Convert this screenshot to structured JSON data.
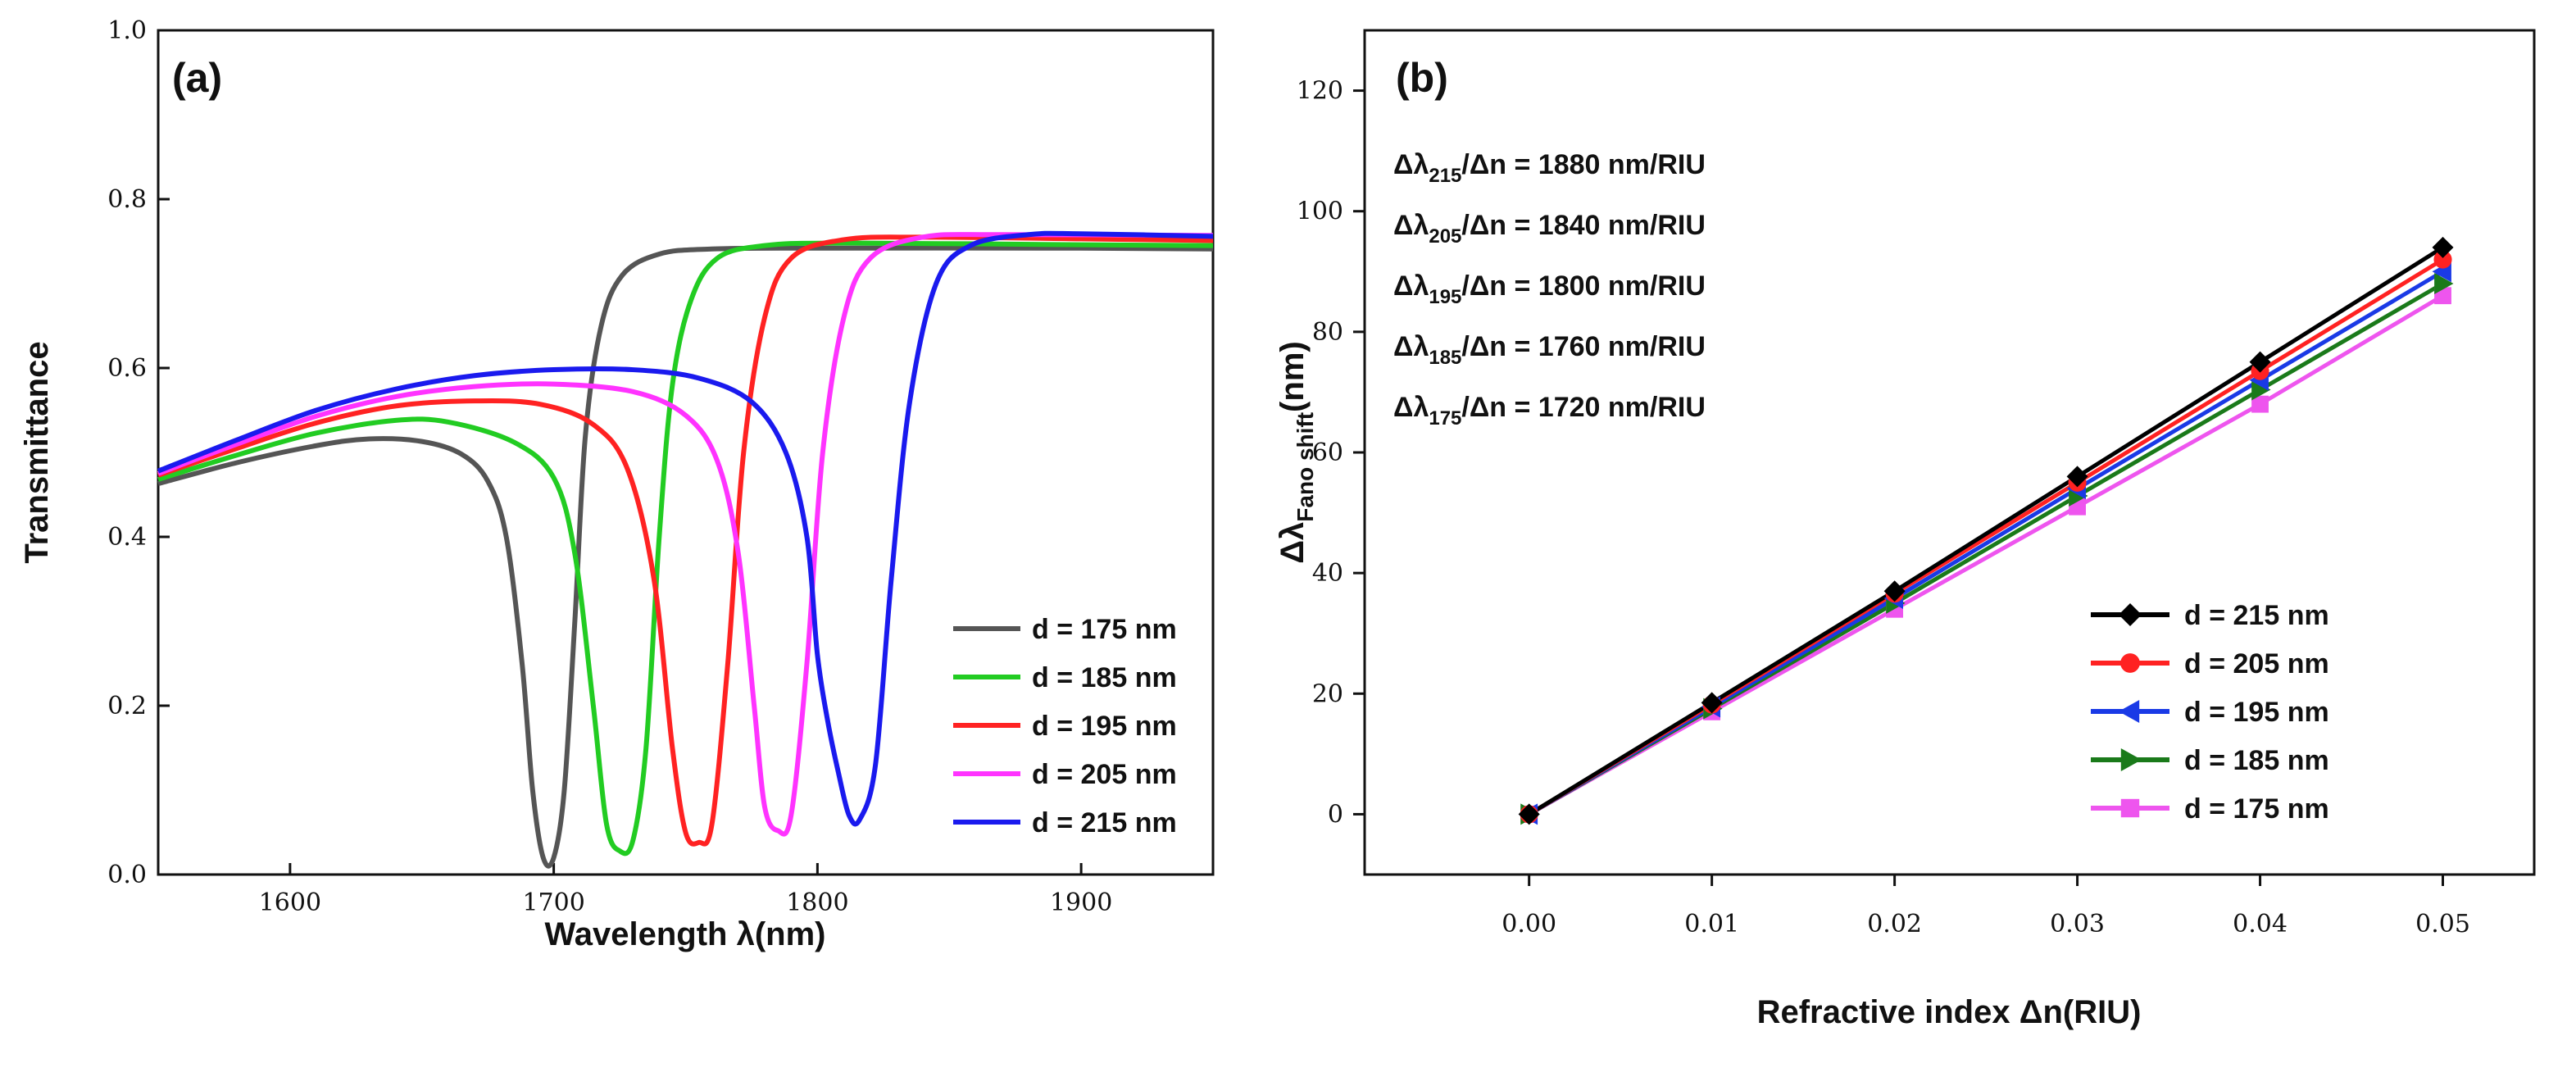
{
  "chart_data": [
    {
      "type": "line",
      "panel_label": "(a)",
      "xlabel": "Wavelength λ(nm)",
      "ylabel": "Transmittance",
      "xlim": [
        1550,
        1950
      ],
      "ylim": [
        0.0,
        1.0
      ],
      "xticks": [
        1600,
        1700,
        1800,
        1900
      ],
      "xtick_labels": [
        "1600",
        "1700",
        "1800",
        "1900"
      ],
      "yticks": [
        0.0,
        0.2,
        0.4,
        0.6,
        0.8,
        1.0
      ],
      "ytick_labels": [
        "0.0",
        "0.2",
        "0.4",
        "0.6",
        "0.8",
        "1.0"
      ],
      "legend_position": "lower-right",
      "series": [
        {
          "name": "d = 175 nm",
          "color": "#555555",
          "points": [
            [
              1550,
              0.463
            ],
            [
              1580,
              0.488
            ],
            [
              1610,
              0.508
            ],
            [
              1630,
              0.516
            ],
            [
              1650,
              0.513
            ],
            [
              1665,
              0.498
            ],
            [
              1675,
              0.466
            ],
            [
              1682,
              0.4
            ],
            [
              1688,
              0.25
            ],
            [
              1692,
              0.1
            ],
            [
              1696,
              0.02
            ],
            [
              1700,
              0.02
            ],
            [
              1704,
              0.1
            ],
            [
              1708,
              0.3
            ],
            [
              1712,
              0.52
            ],
            [
              1718,
              0.65
            ],
            [
              1726,
              0.71
            ],
            [
              1740,
              0.735
            ],
            [
              1760,
              0.741
            ],
            [
              1800,
              0.742
            ],
            [
              1900,
              0.742
            ],
            [
              1950,
              0.741
            ]
          ]
        },
        {
          "name": "d = 185 nm",
          "color": "#22cc22",
          "points": [
            [
              1550,
              0.468
            ],
            [
              1580,
              0.497
            ],
            [
              1610,
              0.523
            ],
            [
              1640,
              0.538
            ],
            [
              1660,
              0.536
            ],
            [
              1685,
              0.512
            ],
            [
              1700,
              0.47
            ],
            [
              1708,
              0.38
            ],
            [
              1715,
              0.2
            ],
            [
              1720,
              0.06
            ],
            [
              1725,
              0.028
            ],
            [
              1730,
              0.04
            ],
            [
              1735,
              0.15
            ],
            [
              1740,
              0.4
            ],
            [
              1745,
              0.58
            ],
            [
              1752,
              0.68
            ],
            [
              1762,
              0.73
            ],
            [
              1780,
              0.745
            ],
            [
              1810,
              0.748
            ],
            [
              1900,
              0.746
            ],
            [
              1950,
              0.745
            ]
          ]
        },
        {
          "name": "d = 195 nm",
          "color": "#ff2222",
          "points": [
            [
              1550,
              0.473
            ],
            [
              1580,
              0.505
            ],
            [
              1610,
              0.535
            ],
            [
              1640,
              0.555
            ],
            [
              1670,
              0.561
            ],
            [
              1695,
              0.557
            ],
            [
              1715,
              0.533
            ],
            [
              1728,
              0.48
            ],
            [
              1738,
              0.35
            ],
            [
              1745,
              0.15
            ],
            [
              1750,
              0.05
            ],
            [
              1755,
              0.038
            ],
            [
              1760,
              0.06
            ],
            [
              1766,
              0.25
            ],
            [
              1772,
              0.5
            ],
            [
              1780,
              0.66
            ],
            [
              1790,
              0.73
            ],
            [
              1810,
              0.752
            ],
            [
              1840,
              0.755
            ],
            [
              1900,
              0.753
            ],
            [
              1950,
              0.751
            ]
          ]
        },
        {
          "name": "d = 205 nm",
          "color": "#ff33ff",
          "points": [
            [
              1550,
              0.475
            ],
            [
              1580,
              0.51
            ],
            [
              1610,
              0.543
            ],
            [
              1640,
              0.566
            ],
            [
              1670,
              0.578
            ],
            [
              1700,
              0.581
            ],
            [
              1730,
              0.572
            ],
            [
              1750,
              0.544
            ],
            [
              1762,
              0.49
            ],
            [
              1770,
              0.38
            ],
            [
              1776,
              0.2
            ],
            [
              1780,
              0.08
            ],
            [
              1785,
              0.052
            ],
            [
              1790,
              0.07
            ],
            [
              1796,
              0.25
            ],
            [
              1802,
              0.5
            ],
            [
              1810,
              0.66
            ],
            [
              1820,
              0.73
            ],
            [
              1840,
              0.755
            ],
            [
              1870,
              0.758
            ],
            [
              1950,
              0.757
            ]
          ]
        },
        {
          "name": "d = 215 nm",
          "color": "#1a1aee",
          "points": [
            [
              1550,
              0.478
            ],
            [
              1580,
              0.515
            ],
            [
              1610,
              0.55
            ],
            [
              1640,
              0.575
            ],
            [
              1670,
              0.591
            ],
            [
              1700,
              0.598
            ],
            [
              1730,
              0.598
            ],
            [
              1755,
              0.588
            ],
            [
              1775,
              0.56
            ],
            [
              1788,
              0.5
            ],
            [
              1796,
              0.4
            ],
            [
              1800,
              0.26
            ],
            [
              1804,
              0.18
            ],
            [
              1808,
              0.12
            ],
            [
              1812,
              0.07
            ],
            [
              1816,
              0.065
            ],
            [
              1822,
              0.13
            ],
            [
              1828,
              0.35
            ],
            [
              1835,
              0.56
            ],
            [
              1845,
              0.7
            ],
            [
              1858,
              0.745
            ],
            [
              1880,
              0.758
            ],
            [
              1900,
              0.759
            ],
            [
              1950,
              0.756
            ]
          ]
        }
      ]
    },
    {
      "type": "line",
      "panel_label": "(b)",
      "xlabel": "Refractive index Δn(RIU)",
      "ylabel_main": "Δλ",
      "ylabel_sub": "Fano shift",
      "ylabel_unit": "(nm)",
      "xlim": [
        -0.009,
        0.055
      ],
      "ylim": [
        -10,
        130
      ],
      "xticks": [
        0.0,
        0.01,
        0.02,
        0.03,
        0.04,
        0.05
      ],
      "xtick_labels": [
        "0.00",
        "0.01",
        "0.02",
        "0.03",
        "0.04",
        "0.05"
      ],
      "yticks": [
        0,
        20,
        40,
        60,
        80,
        100,
        120
      ],
      "ytick_labels": [
        "0",
        "20",
        "40",
        "60",
        "80",
        "100",
        "120"
      ],
      "legend_position": "lower-right",
      "x": [
        0.0,
        0.01,
        0.02,
        0.03,
        0.04,
        0.05
      ],
      "series": [
        {
          "name": "d = 215 nm",
          "color": "#000000",
          "marker": "diamond",
          "values": [
            0,
            18.5,
            37,
            56,
            75,
            94
          ]
        },
        {
          "name": "d = 205 nm",
          "color": "#ff2222",
          "marker": "circle",
          "values": [
            0,
            18.2,
            36.6,
            55,
            73.5,
            92
          ]
        },
        {
          "name": "d = 195 nm",
          "color": "#1a3ae6",
          "marker": "triangle-left",
          "values": [
            0,
            17.8,
            35.8,
            54,
            72,
            90
          ]
        },
        {
          "name": "d = 185 nm",
          "color": "#1a7a1a",
          "marker": "triangle-right",
          "values": [
            0,
            17.5,
            35,
            52.8,
            70.4,
            88
          ]
        },
        {
          "name": "d = 175 nm",
          "color": "#ee55ee",
          "marker": "square",
          "values": [
            0,
            17,
            34,
            51,
            68,
            86
          ]
        }
      ],
      "sensitivity_annotations": [
        {
          "sub": "215",
          "value": "1880 nm/RIU"
        },
        {
          "sub": "205",
          "value": "1840 nm/RIU"
        },
        {
          "sub": "195",
          "value": "1800 nm/RIU"
        },
        {
          "sub": "185",
          "value": "1760 nm/RIU"
        },
        {
          "sub": "175",
          "value": "1720 nm/RIU"
        }
      ]
    }
  ]
}
